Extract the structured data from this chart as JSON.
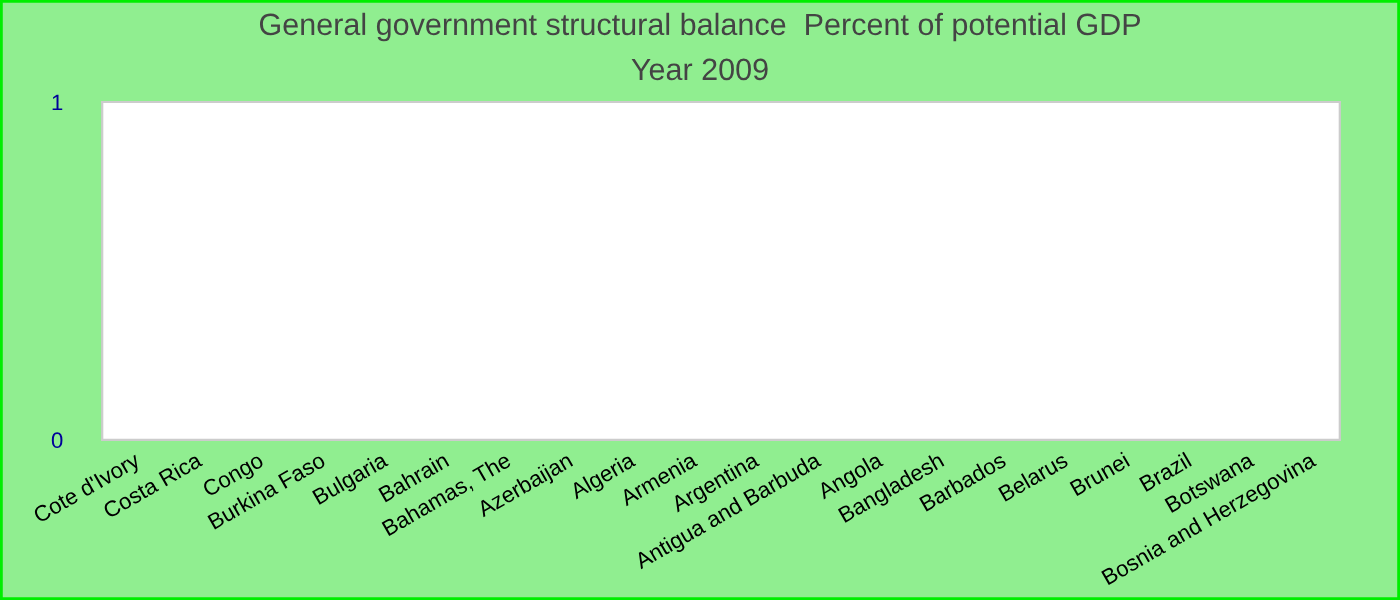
{
  "chart_data": {
    "type": "bar",
    "title": "General government structural balance  Percent of potential GDP",
    "subtitle": "Year 2009",
    "categories": [
      "Cote d'Ivory",
      "Costa Rica",
      "Congo",
      "Burkina Faso",
      "Bulgaria",
      "Bahrain",
      "Bahamas, The",
      "Azerbaijan",
      "Algeria",
      "Armenia",
      "Argentina",
      "Antigua and Barbuda",
      "Angola",
      "Bangladesh",
      "Barbados",
      "Belarus",
      "Brunei",
      "Brazil",
      "Botswana",
      "Bosnia and Herzegovina"
    ],
    "values": [
      null,
      null,
      null,
      null,
      null,
      null,
      null,
      null,
      null,
      null,
      null,
      null,
      null,
      null,
      null,
      null,
      null,
      null,
      null,
      null
    ],
    "ylim": [
      0,
      1
    ],
    "yticks": [
      0,
      1
    ],
    "grid": false
  }
}
